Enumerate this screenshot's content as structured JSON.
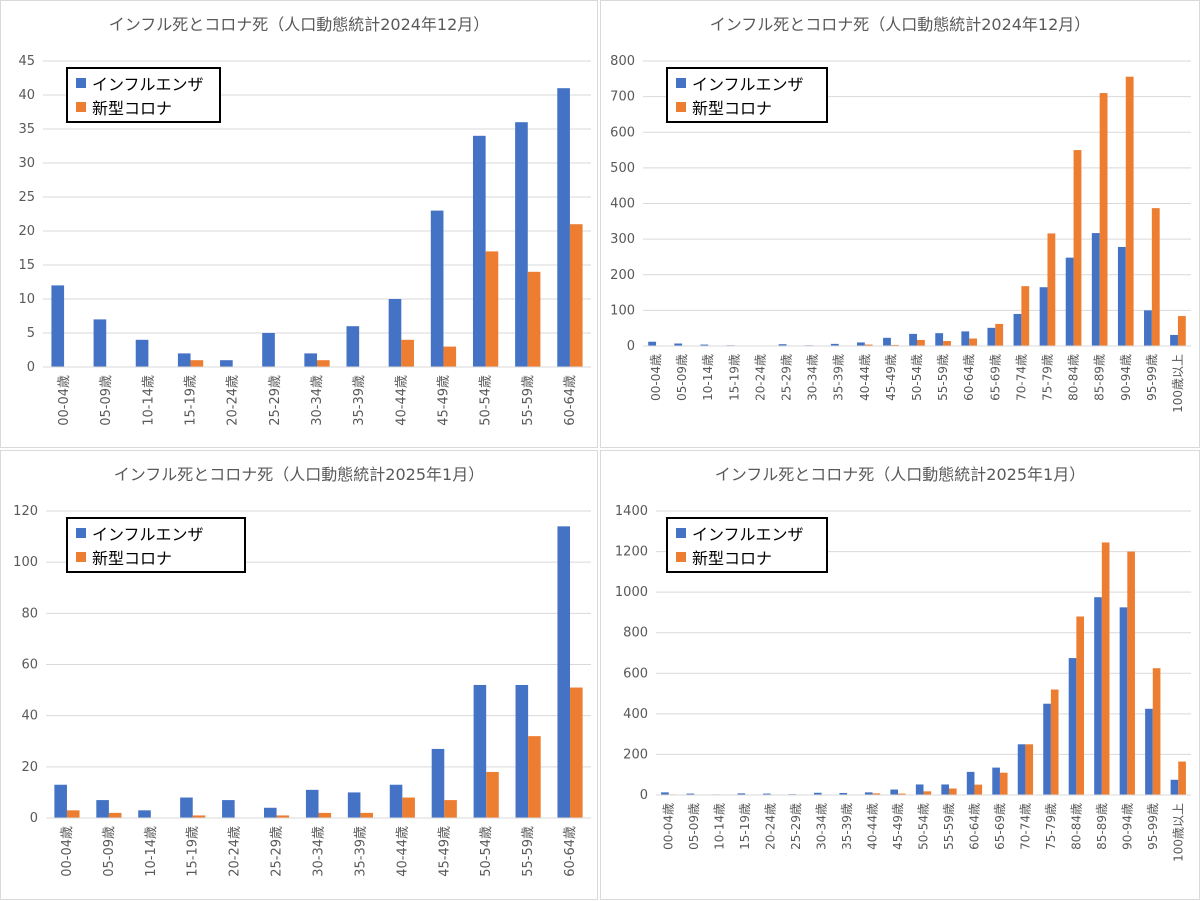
{
  "colors": {
    "influenza": "#4472C4",
    "corona": "#ED7D31"
  },
  "chart_data": [
    {
      "type": "bar",
      "title": "インフル死とコロナ死（人口動態統計2024年12月）",
      "categories": [
        "00-04歳",
        "05-09歳",
        "10-14歳",
        "15-19歳",
        "20-24歳",
        "25-29歳",
        "30-34歳",
        "35-39歳",
        "40-44歳",
        "45-49歳",
        "50-54歳",
        "55-59歳",
        "60-64歳"
      ],
      "series": [
        {
          "name": "インフルエンザ",
          "values": [
            12,
            7,
            4,
            2,
            1,
            5,
            2,
            6,
            10,
            23,
            34,
            36,
            41
          ]
        },
        {
          "name": "新型コロナ",
          "values": [
            0,
            0,
            0,
            1,
            0,
            0,
            1,
            0,
            4,
            3,
            17,
            14,
            21
          ]
        }
      ],
      "ylim": [
        0,
        45
      ],
      "yticks": [
        "0",
        "5",
        "10",
        "15",
        "20",
        "25",
        "30",
        "35",
        "40",
        "45"
      ],
      "legend": "top-left",
      "grid": true
    },
    {
      "type": "bar",
      "title": "インフル死とコロナ死（人口動態統計2024年12月）",
      "categories": [
        "00-04歳",
        "05-09歳",
        "10-14歳",
        "15-19歳",
        "20-24歳",
        "25-29歳",
        "30-34歳",
        "35-39歳",
        "40-44歳",
        "45-49歳",
        "50-54歳",
        "55-59歳",
        "60-64歳",
        "65-69歳",
        "70-74歳",
        "75-79歳",
        "80-84歳",
        "85-89歳",
        "90-94歳",
        "95-99歳",
        "100歳以上"
      ],
      "series": [
        {
          "name": "インフルエンザ",
          "values": [
            12,
            7,
            4,
            2,
            1,
            5,
            2,
            6,
            10,
            23,
            34,
            36,
            41,
            51,
            90,
            165,
            248,
            317,
            278,
            100,
            31
          ]
        },
        {
          "name": "新型コロナ",
          "values": [
            0,
            0,
            0,
            1,
            0,
            0,
            1,
            0,
            4,
            3,
            17,
            14,
            21,
            62,
            168,
            316,
            550,
            710,
            756,
            387,
            84
          ]
        }
      ],
      "ylim": [
        0,
        800
      ],
      "yticks": [
        "0",
        "100",
        "200",
        "300",
        "400",
        "500",
        "600",
        "700",
        "800"
      ],
      "legend": "top-left",
      "grid": true
    },
    {
      "type": "bar",
      "title": "インフル死とコロナ死（人口動態統計2025年1月）",
      "categories": [
        "00-04歳",
        "05-09歳",
        "10-14歳",
        "15-19歳",
        "20-24歳",
        "25-29歳",
        "30-34歳",
        "35-39歳",
        "40-44歳",
        "45-49歳",
        "50-54歳",
        "55-59歳",
        "60-64歳"
      ],
      "series": [
        {
          "name": "インフルエンザ",
          "values": [
            13,
            7,
            3,
            8,
            7,
            4,
            11,
            10,
            13,
            27,
            52,
            52,
            114
          ]
        },
        {
          "name": "新型コロナ",
          "values": [
            3,
            2,
            0,
            1,
            0,
            1,
            2,
            2,
            8,
            7,
            18,
            32,
            51
          ]
        }
      ],
      "ylim": [
        0,
        120
      ],
      "yticks": [
        "0",
        "20",
        "40",
        "60",
        "80",
        "100",
        "120"
      ],
      "legend": "top-left",
      "grid": true
    },
    {
      "type": "bar",
      "title": "インフル死とコロナ死（人口動態統計2025年1月）",
      "categories": [
        "00-04歳",
        "05-09歳",
        "10-14歳",
        "15-19歳",
        "20-24歳",
        "25-29歳",
        "30-34歳",
        "35-39歳",
        "40-44歳",
        "45-49歳",
        "50-54歳",
        "55-59歳",
        "60-64歳",
        "65-69歳",
        "70-74歳",
        "75-79歳",
        "80-84歳",
        "85-89歳",
        "90-94歳",
        "95-99歳",
        "100歳以上"
      ],
      "series": [
        {
          "name": "インフルエンザ",
          "values": [
            13,
            7,
            3,
            8,
            7,
            4,
            11,
            10,
            13,
            27,
            52,
            52,
            114,
            135,
            250,
            450,
            675,
            975,
            925,
            425,
            75
          ]
        },
        {
          "name": "新型コロナ",
          "values": [
            3,
            2,
            0,
            1,
            0,
            1,
            2,
            2,
            8,
            7,
            18,
            32,
            51,
            110,
            250,
            520,
            880,
            1245,
            1200,
            625,
            165
          ]
        }
      ],
      "ylim": [
        0,
        1400
      ],
      "yticks": [
        "0",
        "200",
        "400",
        "600",
        "800",
        "1000",
        "1200",
        "1400"
      ],
      "legend": "top-left",
      "grid": true
    }
  ]
}
